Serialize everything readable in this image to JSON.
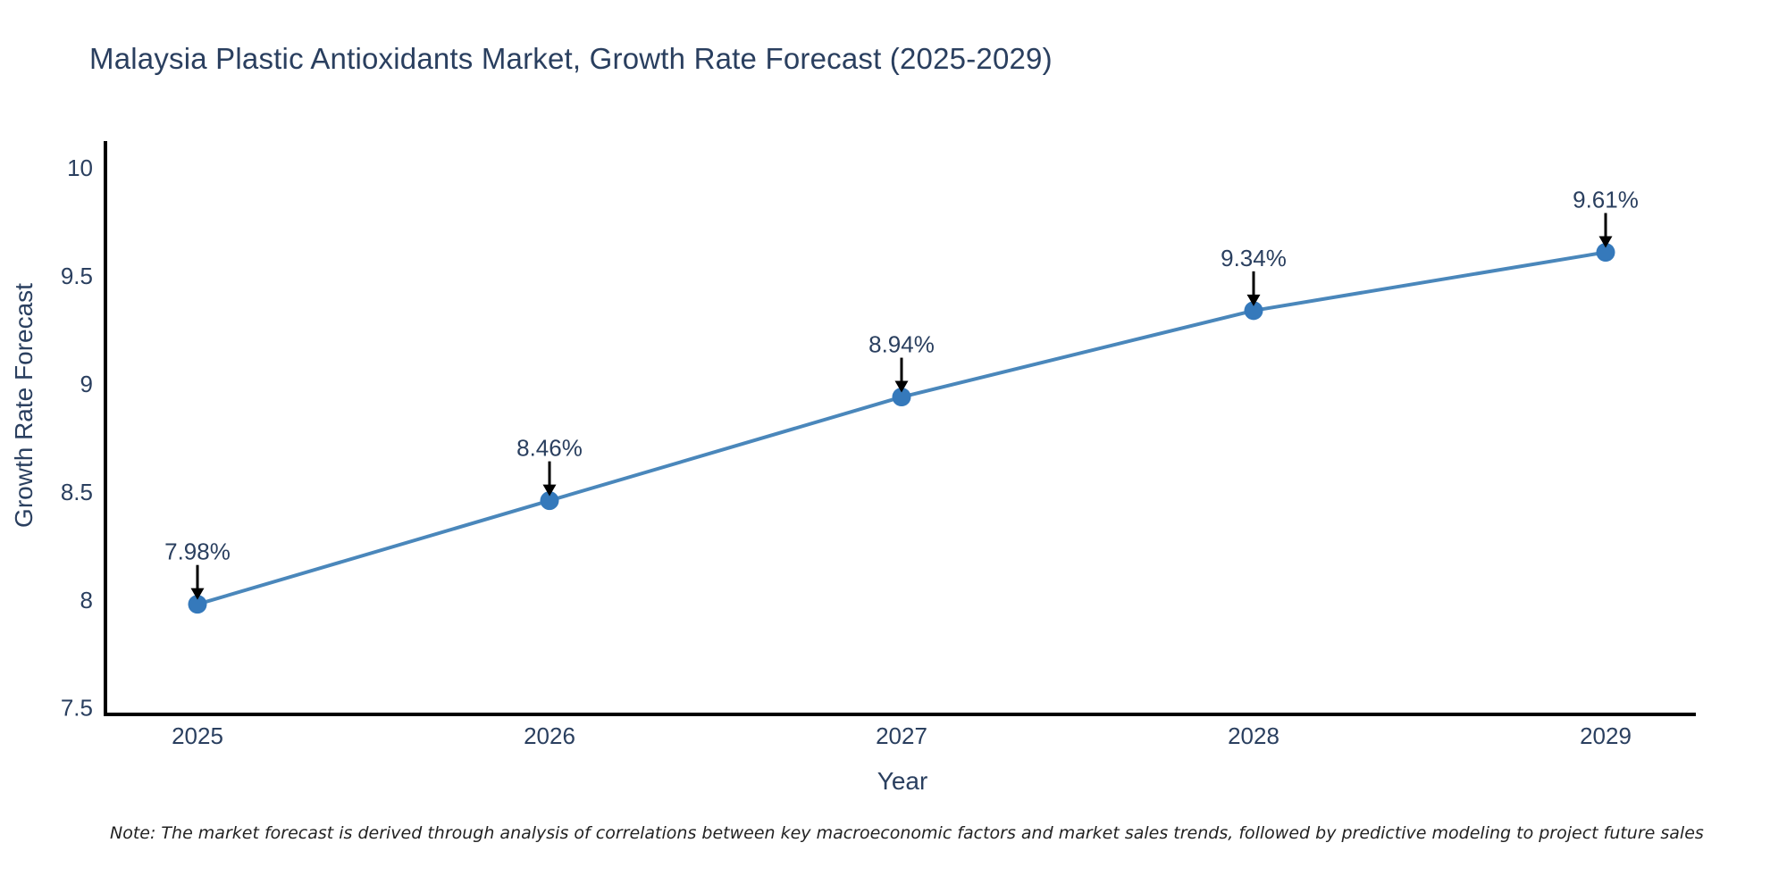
{
  "note": "Note: The market forecast is derived through analysis of correlations between key macroeconomic factors and market sales trends, followed by predictive modeling to project future sales",
  "chart_data": {
    "type": "line",
    "title": "Malaysia Plastic Antioxidants Market, Growth Rate Forecast (2025-2029)",
    "xlabel": "Year",
    "ylabel": "Growth Rate Forecast",
    "categories": [
      "2025",
      "2026",
      "2027",
      "2028",
      "2029"
    ],
    "values": [
      7.98,
      8.46,
      8.94,
      9.34,
      9.61
    ],
    "point_labels": [
      "7.98%",
      "8.46%",
      "8.94%",
      "9.34%",
      "9.61%"
    ],
    "y_ticks": [
      7.5,
      8,
      8.5,
      9,
      9.5,
      10
    ],
    "y_tick_labels": [
      "7.5",
      "8",
      "8.5",
      "9",
      "9.5",
      "10"
    ],
    "ylim": [
      7.47,
      10.13
    ],
    "grid": false,
    "legend": "none",
    "annotation_style": "value-label-with-down-arrow-to-point",
    "colors": {
      "line": "#4a87bb",
      "marker": "#3579bb",
      "axis": "#000000",
      "text": "#2a3f5f",
      "note_text": "#222222",
      "background": "#ffffff"
    }
  }
}
